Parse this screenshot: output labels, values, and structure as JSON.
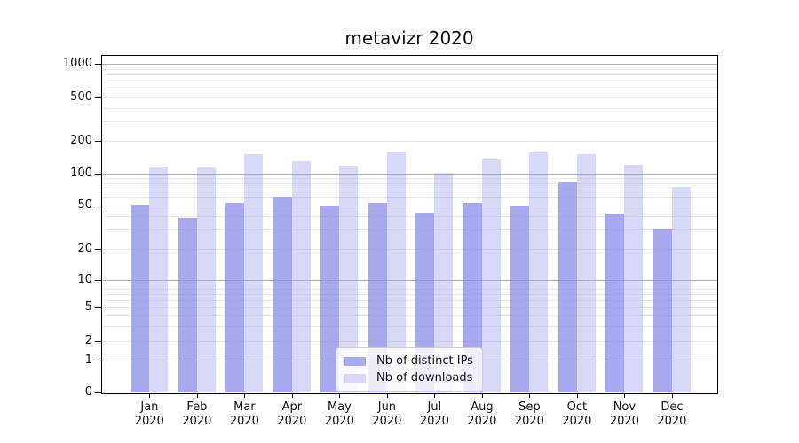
{
  "chart_data": {
    "type": "bar",
    "title": "metavizr 2020",
    "categories": [
      {
        "month": "Jan",
        "year": "2020"
      },
      {
        "month": "Feb",
        "year": "2020"
      },
      {
        "month": "Mar",
        "year": "2020"
      },
      {
        "month": "Apr",
        "year": "2020"
      },
      {
        "month": "May",
        "year": "2020"
      },
      {
        "month": "Jun",
        "year": "2020"
      },
      {
        "month": "Jul",
        "year": "2020"
      },
      {
        "month": "Aug",
        "year": "2020"
      },
      {
        "month": "Sep",
        "year": "2020"
      },
      {
        "month": "Oct",
        "year": "2020"
      },
      {
        "month": "Nov",
        "year": "2020"
      },
      {
        "month": "Dec",
        "year": "2020"
      }
    ],
    "series": [
      {
        "name": "Nb of distinct IPs",
        "legend_color": "#a9a9ee",
        "fill": "rgba(143,143,233,0.78)",
        "values": [
          51,
          38,
          53,
          60,
          50,
          53,
          43,
          53,
          50,
          84,
          42,
          30
        ]
      },
      {
        "name": "Nb of downloads",
        "legend_color": "#d9d9f7",
        "fill": "rgba(168,168,237,0.45)",
        "values": [
          116,
          114,
          152,
          130,
          118,
          159,
          102,
          135,
          157,
          151,
          119,
          75
        ]
      }
    ],
    "y_axis": {
      "scale": "symlog",
      "tick_labels": [
        "0",
        "1",
        "2",
        "5",
        "10",
        "20",
        "50",
        "100",
        "200",
        "500",
        "1000"
      ],
      "tick_values": [
        0,
        1,
        2,
        5,
        10,
        20,
        50,
        100,
        200,
        500,
        1000
      ]
    },
    "grid": {
      "major_lines": [
        1,
        10,
        100,
        1000
      ],
      "minor_lines": [
        2,
        3,
        4,
        5,
        6,
        7,
        8,
        9,
        20,
        30,
        40,
        50,
        60,
        70,
        80,
        90,
        200,
        300,
        400,
        500,
        600,
        700,
        800,
        900
      ]
    },
    "legend_position": "bottom-center"
  },
  "colors": {
    "major_grid": "#adadad",
    "minor_grid": "#e8e8e8",
    "spine": "#000000",
    "background": "#ffffff"
  }
}
